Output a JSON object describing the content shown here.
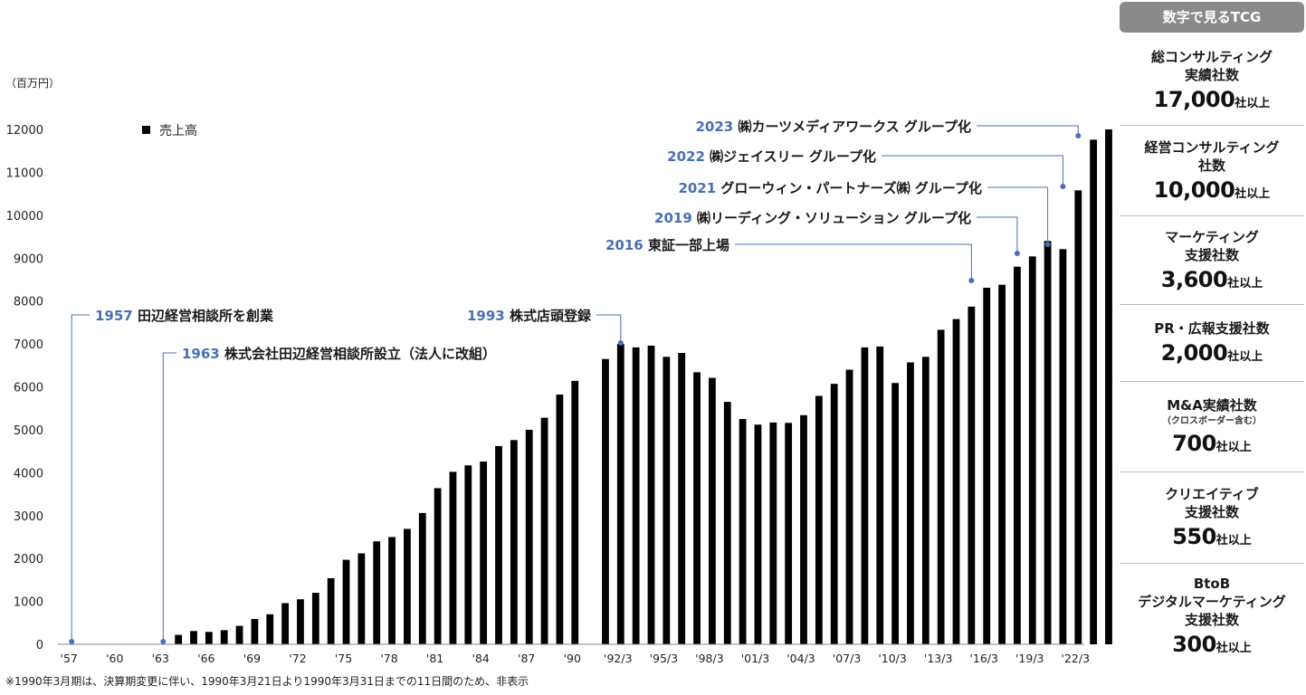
{
  "chart_data": {
    "type": "bar",
    "unit_label": "（百万円）",
    "legend": "売上高",
    "ylim": [
      0,
      12000
    ],
    "yticks": [
      0,
      1000,
      2000,
      3000,
      4000,
      5000,
      6000,
      7000,
      8000,
      9000,
      10000,
      11000,
      12000
    ],
    "x_tick_labels": [
      "'57",
      "'60",
      "'63",
      "'66",
      "'69",
      "'72",
      "'75",
      "'78",
      "'81",
      "'84",
      "'87",
      "'90",
      "'92/3",
      "'95/3",
      "'98/3",
      "'01/3",
      "'04/3",
      "'07/3",
      "'10/3",
      "'13/3",
      "'16/3",
      "'19/3",
      "'22/3"
    ],
    "series": [
      {
        "values": [
          0,
          0,
          0,
          0,
          0,
          0,
          0,
          220,
          310,
          290,
          330,
          430,
          590,
          700,
          960,
          1050,
          1200,
          1540,
          1970,
          2120,
          2400,
          2500,
          2690,
          3060,
          3640,
          4020,
          4170,
          4260,
          4620,
          4760,
          5000,
          5280,
          5820,
          6140,
          null,
          6650,
          7000,
          6920,
          6960,
          6700,
          6790,
          6340,
          6210,
          5650,
          5250,
          5120,
          5170,
          5160,
          5340,
          5790,
          6070,
          6400,
          6920,
          6940,
          6090,
          6570,
          6700,
          7330,
          7580,
          7870,
          8310,
          8380,
          8800,
          9040,
          9400,
          9210,
          10580,
          11760,
          12000
        ]
      }
    ],
    "annotations": [
      {
        "year": "1957",
        "text": "田辺経営相談所を創業"
      },
      {
        "year": "1963",
        "text": "株式会社田辺経営相談所設立（法人に改組）"
      },
      {
        "year": "1993",
        "text": "株式店頭登録"
      },
      {
        "year": "2016",
        "text": "東証一部上場"
      },
      {
        "year": "2019",
        "text": "㈱リーディング・ソリューション グループ化"
      },
      {
        "year": "2021",
        "text": "グローウィン・パートナーズ㈱ グループ化"
      },
      {
        "year": "2022",
        "text": "㈱ジェイスリー グループ化"
      },
      {
        "year": "2023",
        "text": "㈱カーツメディアワークス グループ化"
      }
    ]
  },
  "footnote": "※1990年3月期は、決算期変更に伴い、1990年3月21日より1990年3月31日までの11日間のため、非表示",
  "panel": {
    "header": "数字で見るTCG",
    "stats": [
      {
        "label": "総コンサルティング\n実績社数",
        "value": "17,000",
        "unit": "社以上"
      },
      {
        "label": "経営コンサルティング\n社数",
        "value": "10,000",
        "unit": "社以上"
      },
      {
        "label": "マーケティング\n支援社数",
        "value": "3,600",
        "unit": "社以上"
      },
      {
        "label": "PR・広報支援社数",
        "value": "2,000",
        "unit": "社以上"
      },
      {
        "label": "M&A実績社数",
        "note": "（クロスボーダー含む）",
        "value": "700",
        "unit": "社以上"
      },
      {
        "label": "クリエイティブ\n支援社数",
        "value": "550",
        "unit": "社以上"
      },
      {
        "label": "BtoB\nデジタルマーケティング\n支援社数",
        "value": "300",
        "unit": "社以上"
      }
    ]
  },
  "colors": {
    "bar": "#000000",
    "annotation_year": "#4a6fb5",
    "annotation_line": "#4a6fb5",
    "axis": "#888888",
    "panel_header_bg": "#8a8a8a",
    "divider": "#bdbdbd"
  }
}
